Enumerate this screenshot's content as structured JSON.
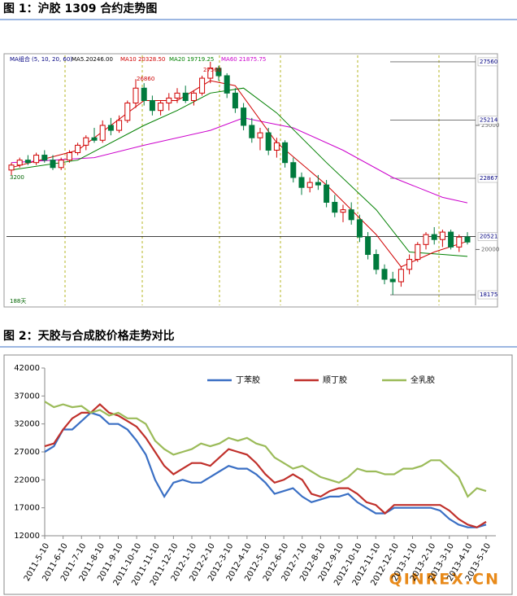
{
  "captions": [
    "图 1：沪胶 1309 合约走势图",
    "图 2：天胶与合成胶价格走势对比"
  ],
  "watermark": "QINREX.CN",
  "chart_data": [
    {
      "type": "candlestick",
      "legend_texts": [
        "MA组合 (5, 10, 20, 60)",
        "MA5.20246.00",
        "MA10 20328.50",
        "MA20 19719.25",
        "MA60 21875.75"
      ],
      "legend_colors": [
        "#000080",
        "#000000",
        "#d00000",
        "#008000",
        "#cc00cc"
      ],
      "annotations": [
        "26860",
        "27560",
        "3200",
        "188天"
      ],
      "ylim": [
        17750,
        27820
      ],
      "yticks": [
        25000,
        20000
      ],
      "levels": [
        27560,
        25214,
        22867,
        20521,
        18175
      ],
      "up_color": "#d00000",
      "down_color": "#007a3d",
      "candles": [
        [
          23200,
          23500,
          23000,
          23400
        ],
        [
          23400,
          23700,
          23300,
          23600
        ],
        [
          23600,
          23800,
          23400,
          23500
        ],
        [
          23500,
          23900,
          23400,
          23800
        ],
        [
          23800,
          24000,
          23500,
          23600
        ],
        [
          23600,
          23800,
          23200,
          23300
        ],
        [
          23300,
          23700,
          23200,
          23600
        ],
        [
          23600,
          24000,
          23500,
          23900
        ],
        [
          23900,
          24300,
          23800,
          24200
        ],
        [
          24200,
          24600,
          24000,
          24500
        ],
        [
          24500,
          24900,
          24300,
          24400
        ],
        [
          24400,
          25200,
          24300,
          25000
        ],
        [
          25000,
          25300,
          24600,
          24800
        ],
        [
          24800,
          25400,
          24700,
          25200
        ],
        [
          25200,
          26000,
          25100,
          25900
        ],
        [
          25900,
          26860,
          25700,
          26500
        ],
        [
          26500,
          26700,
          25800,
          26000
        ],
        [
          26000,
          26200,
          25400,
          25600
        ],
        [
          25600,
          26000,
          25400,
          25900
        ],
        [
          25900,
          26300,
          25600,
          26100
        ],
        [
          26100,
          26500,
          25900,
          26300
        ],
        [
          26300,
          26600,
          25900,
          26000
        ],
        [
          26000,
          26400,
          25800,
          26300
        ],
        [
          26300,
          27000,
          26200,
          26900
        ],
        [
          26900,
          27560,
          26700,
          27300
        ],
        [
          27300,
          27400,
          26800,
          27000
        ],
        [
          27000,
          27100,
          26100,
          26300
        ],
        [
          26300,
          26500,
          25500,
          25700
        ],
        [
          25700,
          25900,
          24800,
          25000
        ],
        [
          25000,
          25300,
          24300,
          24500
        ],
        [
          24500,
          24900,
          24000,
          24700
        ],
        [
          24700,
          24900,
          23800,
          24000
        ],
        [
          24000,
          24500,
          23700,
          24300
        ],
        [
          24300,
          24400,
          23300,
          23500
        ],
        [
          23500,
          23700,
          22700,
          22900
        ],
        [
          22900,
          23100,
          22200,
          22500
        ],
        [
          22500,
          22900,
          22300,
          22700
        ],
        [
          22700,
          23000,
          22400,
          22600
        ],
        [
          22600,
          22800,
          21700,
          21900
        ],
        [
          21900,
          22200,
          21300,
          21500
        ],
        [
          21500,
          21800,
          21100,
          21600
        ],
        [
          21600,
          21900,
          21000,
          21200
        ],
        [
          21200,
          21400,
          20300,
          20500
        ],
        [
          20500,
          20700,
          19600,
          19800
        ],
        [
          19800,
          20000,
          19000,
          19200
        ],
        [
          19200,
          19400,
          18600,
          18800
        ],
        [
          18800,
          19100,
          18175,
          18700
        ],
        [
          18700,
          19300,
          18500,
          19200
        ],
        [
          19200,
          19800,
          19000,
          19600
        ],
        [
          19600,
          20300,
          19500,
          20200
        ],
        [
          20200,
          20700,
          20000,
          20600
        ],
        [
          20600,
          20900,
          20200,
          20400
        ],
        [
          20400,
          20800,
          20100,
          20700
        ],
        [
          20700,
          20800,
          20000,
          20100
        ],
        [
          20100,
          20600,
          19900,
          20500
        ],
        [
          20500,
          20700,
          20200,
          20300
        ]
      ],
      "ma_lines": [
        {
          "color": "#cc00cc",
          "x": [
            0,
            10,
            16,
            24,
            28,
            34,
            40,
            46,
            52,
            55
          ],
          "values": [
            23500,
            23700,
            24200,
            24800,
            25300,
            24900,
            24000,
            22900,
            22100,
            21880
          ]
        },
        {
          "color": "#008000",
          "x": [
            0,
            8,
            16,
            20,
            24,
            28,
            32,
            38,
            44,
            48,
            52,
            55
          ],
          "values": [
            23200,
            23600,
            25000,
            25600,
            26300,
            26500,
            25500,
            23500,
            21600,
            19900,
            19800,
            19720
          ]
        },
        {
          "color": "#d00000",
          "x": [
            0,
            8,
            16,
            20,
            24,
            27,
            32,
            38,
            44,
            47,
            51,
            55
          ],
          "values": [
            23300,
            24000,
            26000,
            26000,
            26800,
            26600,
            24300,
            22600,
            20600,
            19300,
            19900,
            20330
          ]
        }
      ]
    },
    {
      "type": "line",
      "ylim": [
        12000,
        42000
      ],
      "yticks": [
        12000,
        17000,
        22000,
        27000,
        32000,
        37000,
        42000
      ],
      "categories": [
        "2011-5-10",
        null,
        "2011-6-10",
        null,
        "2011-7-10",
        null,
        "2011-8-10",
        null,
        "2011-9-10",
        null,
        "2011-10-10",
        null,
        "2011-11-10",
        null,
        "2011-12-10",
        null,
        "2012-1-10",
        null,
        "2012-2-10",
        null,
        "2012-3-10",
        null,
        "2012-4-10",
        null,
        "2012-5-10",
        null,
        "2012-6-10",
        null,
        "2012-7-10",
        null,
        "2012-8-10",
        null,
        "2012-9-10",
        null,
        "2012-10-10",
        null,
        "2012-11-10",
        null,
        "2012-12-10",
        null,
        "2013-1-10",
        null,
        "2013-2-10",
        null,
        "2013-3-10",
        null,
        "2013-4-10",
        null,
        "2013-5-10"
      ],
      "series": [
        {
          "name": "丁苯胶",
          "color": "#3a6fc4",
          "values": [
            27000,
            28000,
            31000,
            31000,
            32500,
            34000,
            33500,
            32000,
            32000,
            31000,
            29000,
            26500,
            22000,
            19000,
            21500,
            22000,
            21500,
            21500,
            22500,
            23500,
            24500,
            24000,
            24000,
            23000,
            21500,
            19500,
            20000,
            20500,
            19000,
            18000,
            18500,
            19000,
            19000,
            19500,
            18000,
            17000,
            16000,
            16000,
            17000,
            17000,
            17000,
            17000,
            17000,
            16500,
            15000,
            14000,
            13500,
            13500,
            14000
          ]
        },
        {
          "name": "顺丁胶",
          "color": "#c0302b",
          "values": [
            28000,
            28500,
            31000,
            33000,
            34000,
            34000,
            35500,
            34000,
            33500,
            32500,
            31500,
            29500,
            27000,
            24500,
            23000,
            24000,
            25000,
            25000,
            24500,
            26000,
            27500,
            27000,
            26500,
            25000,
            23000,
            21500,
            22000,
            23000,
            22000,
            19500,
            19000,
            20000,
            20500,
            20500,
            19500,
            18000,
            17500,
            16000,
            17500,
            17500,
            17500,
            17500,
            17500,
            17500,
            16500,
            15000,
            14000,
            13500,
            14500
          ]
        },
        {
          "name": "全乳胶",
          "color": "#9bbb59",
          "values": [
            36000,
            35000,
            35500,
            35000,
            35200,
            34000,
            34500,
            33500,
            34000,
            33000,
            33000,
            32000,
            29000,
            27500,
            26500,
            27000,
            27500,
            28500,
            28000,
            28500,
            29500,
            29000,
            29500,
            28500,
            28000,
            26000,
            25000,
            24000,
            24500,
            23500,
            22500,
            22000,
            21500,
            22500,
            24000,
            23500,
            23500,
            23000,
            23000,
            24000,
            24000,
            24500,
            25500,
            25500,
            24000,
            22500,
            19000,
            20500,
            20000
          ]
        }
      ]
    }
  ]
}
